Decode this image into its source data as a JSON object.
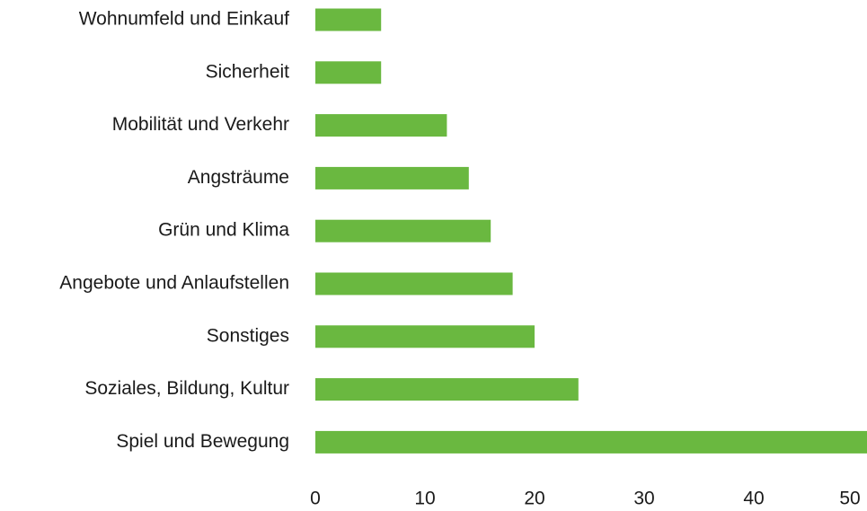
{
  "chart_data": {
    "type": "barh",
    "categories": [
      "Wohnumfeld und Einkauf",
      "Sicherheit",
      "Mobilität und Verkehr",
      "Angsträume",
      "Grün und Klima",
      "Angebote und Anlaufstellen",
      "Sonstiges",
      "Soziales, Bildung, Kultur",
      "Spiel und Bewegung"
    ],
    "values": [
      6,
      6,
      12,
      14,
      16,
      18,
      20,
      24,
      51
    ],
    "color": "#6ab840",
    "xlim": [
      0,
      50
    ],
    "xticks": [
      0,
      10,
      20,
      30,
      40,
      50
    ],
    "grid": false
  }
}
